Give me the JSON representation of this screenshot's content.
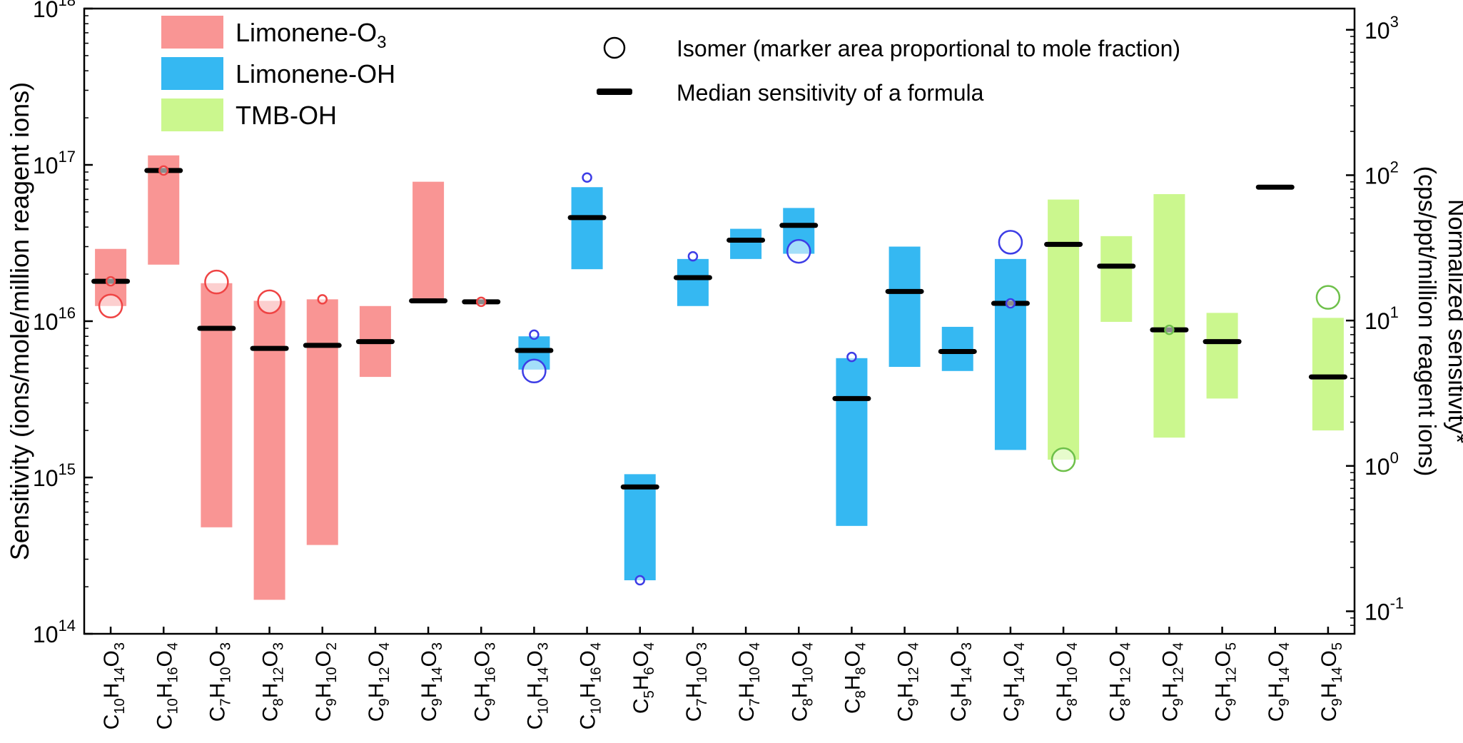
{
  "chart_data": {
    "type": "bar",
    "y_scale": "log",
    "ylim": [
      100000000000000.0,
      1e+18
    ],
    "y2lim": [
      0.07,
      1400
    ],
    "ylabel": "Sensitivity (ions/mole/million reagent ions)",
    "y2label_line1": "Normalized sensitivity*",
    "y2label_line2": "(cps/ppt/million reagent ions)",
    "y_ticks": [
      {
        "value": 100000000000000.0,
        "base": "10",
        "exp": "14"
      },
      {
        "value": 1000000000000000.0,
        "base": "10",
        "exp": "15"
      },
      {
        "value": 1e+16,
        "base": "10",
        "exp": "16"
      },
      {
        "value": 1e+17,
        "base": "10",
        "exp": "17"
      },
      {
        "value": 1e+18,
        "base": "10",
        "exp": "18"
      }
    ],
    "y2_ticks": [
      {
        "value": 0.1,
        "base": "10",
        "exp": "-1"
      },
      {
        "value": 1,
        "base": "10",
        "exp": "0"
      },
      {
        "value": 10,
        "base": "10",
        "exp": "1"
      },
      {
        "value": 100,
        "base": "10",
        "exp": "2"
      },
      {
        "value": 1000,
        "base": "10",
        "exp": "3"
      }
    ],
    "legend": {
      "placement": "top-left",
      "systems": [
        {
          "key": "O3",
          "label": "Limonene-O",
          "sub": "3",
          "color": "#f99594"
        },
        {
          "key": "OH",
          "label": "Limonene-OH",
          "sub": "",
          "color": "#35b8f2"
        },
        {
          "key": "TMB",
          "label": "TMB-OH",
          "sub": "",
          "color": "#cbf78e"
        }
      ],
      "isomer_label": "Isomer (marker area proportional to mole fraction)",
      "median_label": "Median sensitivity of a formula"
    },
    "colors": {
      "O3": {
        "bar": "#f99594",
        "marker": "#ef4444"
      },
      "OH": {
        "bar": "#35b8f2",
        "marker": "#3d3de6"
      },
      "TMB": {
        "bar": "#cbf78e",
        "marker": "#6ec04a"
      }
    },
    "categories": [
      {
        "system": "O3",
        "formula": [
          [
            "C",
            "10"
          ],
          [
            "H",
            "14"
          ],
          [
            "O",
            "3"
          ]
        ],
        "min": 1.25e+16,
        "max": 2.9e+16,
        "median": 1.8e+16,
        "isomers": [
          {
            "y": 1.8e+16,
            "r": 6
          },
          {
            "y": 1.25e+16,
            "r": 16
          }
        ]
      },
      {
        "system": "O3",
        "formula": [
          [
            "C",
            "10"
          ],
          [
            "H",
            "16"
          ],
          [
            "O",
            "4"
          ]
        ],
        "min": 2.3e+16,
        "max": 1.15e+17,
        "median": 9.2e+16,
        "isomers": [
          {
            "y": 9.2e+16,
            "r": 6
          }
        ]
      },
      {
        "system": "O3",
        "formula": [
          [
            "C",
            "7"
          ],
          [
            "H",
            "10"
          ],
          [
            "O",
            "3"
          ]
        ],
        "min": 480000000000000.0,
        "max": 1.75e+16,
        "median": 9000000000000000.0,
        "isomers": [
          {
            "y": 1.78e+16,
            "r": 16
          }
        ]
      },
      {
        "system": "O3",
        "formula": [
          [
            "C",
            "8"
          ],
          [
            "H",
            "12"
          ],
          [
            "O",
            "3"
          ]
        ],
        "min": 165000000000000.0,
        "max": 1.35e+16,
        "median": 6700000000000000.0,
        "isomers": [
          {
            "y": 1.33e+16,
            "r": 16
          }
        ]
      },
      {
        "system": "O3",
        "formula": [
          [
            "C",
            "9"
          ],
          [
            "H",
            "10"
          ],
          [
            "O",
            "2"
          ]
        ],
        "min": 370000000000000.0,
        "max": 1.38e+16,
        "median": 7000000000000000.0,
        "isomers": [
          {
            "y": 1.38e+16,
            "r": 6
          }
        ]
      },
      {
        "system": "O3",
        "formula": [
          [
            "C",
            "9"
          ],
          [
            "H",
            "12"
          ],
          [
            "O",
            "4"
          ]
        ],
        "min": 4400000000000000.0,
        "max": 1.25e+16,
        "median": 7400000000000000.0,
        "isomers": []
      },
      {
        "system": "O3",
        "formula": [
          [
            "C",
            "9"
          ],
          [
            "H",
            "14"
          ],
          [
            "O",
            "3"
          ]
        ],
        "min": 1.35e+16,
        "max": 7.8e+16,
        "median": 1.35e+16,
        "isomers": []
      },
      {
        "system": "O3",
        "formula": [
          [
            "C",
            "9"
          ],
          [
            "H",
            "16"
          ],
          [
            "O",
            "3"
          ]
        ],
        "min": 1.33e+16,
        "max": 1.33e+16,
        "median": 1.33e+16,
        "isomers": [
          {
            "y": 1.33e+16,
            "r": 6
          }
        ]
      },
      {
        "system": "OH",
        "formula": [
          [
            "C",
            "10"
          ],
          [
            "H",
            "14"
          ],
          [
            "O",
            "3"
          ]
        ],
        "min": 4900000000000000.0,
        "max": 8000000000000000.0,
        "median": 6500000000000000.0,
        "isomers": [
          {
            "y": 8200000000000000.0,
            "r": 6
          },
          {
            "y": 4800000000000000.0,
            "r": 16
          }
        ]
      },
      {
        "system": "OH",
        "formula": [
          [
            "C",
            "10"
          ],
          [
            "H",
            "16"
          ],
          [
            "O",
            "4"
          ]
        ],
        "min": 2.15e+16,
        "max": 7.2e+16,
        "median": 4.6e+16,
        "isomers": [
          {
            "y": 8.3e+16,
            "r": 6
          }
        ]
      },
      {
        "system": "OH",
        "formula": [
          [
            "C",
            "5"
          ],
          [
            "H",
            "6"
          ],
          [
            "O",
            "4"
          ]
        ],
        "min": 220000000000000.0,
        "max": 1050000000000000.0,
        "median": 870000000000000.0,
        "isomers": [
          {
            "y": 220000000000000.0,
            "r": 6
          }
        ]
      },
      {
        "system": "OH",
        "formula": [
          [
            "C",
            "7"
          ],
          [
            "H",
            "10"
          ],
          [
            "O",
            "3"
          ]
        ],
        "min": 1.25e+16,
        "max": 2.5e+16,
        "median": 1.9e+16,
        "isomers": [
          {
            "y": 2.6e+16,
            "r": 6
          }
        ]
      },
      {
        "system": "OH",
        "formula": [
          [
            "C",
            "7"
          ],
          [
            "H",
            "10"
          ],
          [
            "O",
            "4"
          ]
        ],
        "min": 2.5e+16,
        "max": 3.9e+16,
        "median": 3.3e+16,
        "isomers": []
      },
      {
        "system": "OH",
        "formula": [
          [
            "C",
            "8"
          ],
          [
            "H",
            "10"
          ],
          [
            "O",
            "4"
          ]
        ],
        "min": 2.7e+16,
        "max": 5.3e+16,
        "median": 4.1e+16,
        "isomers": [
          {
            "y": 2.8e+16,
            "r": 16
          }
        ]
      },
      {
        "system": "OH",
        "formula": [
          [
            "C",
            "8"
          ],
          [
            "H",
            "8"
          ],
          [
            "O",
            "4"
          ]
        ],
        "min": 490000000000000.0,
        "max": 5800000000000000.0,
        "median": 3200000000000000.0,
        "isomers": [
          {
            "y": 5900000000000000.0,
            "r": 6
          }
        ]
      },
      {
        "system": "OH",
        "formula": [
          [
            "C",
            "9"
          ],
          [
            "H",
            "12"
          ],
          [
            "O",
            "4"
          ]
        ],
        "min": 5100000000000000.0,
        "max": 3e+16,
        "median": 1.55e+16,
        "isomers": []
      },
      {
        "system": "OH",
        "formula": [
          [
            "C",
            "9"
          ],
          [
            "H",
            "14"
          ],
          [
            "O",
            "3"
          ]
        ],
        "min": 4800000000000000.0,
        "max": 9200000000000000.0,
        "median": 6400000000000000.0,
        "isomers": []
      },
      {
        "system": "OH",
        "formula": [
          [
            "C",
            "9"
          ],
          [
            "H",
            "14"
          ],
          [
            "O",
            "4"
          ]
        ],
        "min": 1500000000000000.0,
        "max": 2.5e+16,
        "median": 1.3e+16,
        "isomers": [
          {
            "y": 3.2e+16,
            "r": 16
          },
          {
            "y": 1.3e+16,
            "r": 6
          }
        ]
      },
      {
        "system": "TMB",
        "formula": [
          [
            "C",
            "8"
          ],
          [
            "H",
            "10"
          ],
          [
            "O",
            "4"
          ]
        ],
        "min": 1300000000000000.0,
        "max": 6e+16,
        "median": 3.1e+16,
        "isomers": [
          {
            "y": 1300000000000000.0,
            "r": 16
          }
        ]
      },
      {
        "system": "TMB",
        "formula": [
          [
            "C",
            "8"
          ],
          [
            "H",
            "12"
          ],
          [
            "O",
            "4"
          ]
        ],
        "min": 9900000000000000.0,
        "max": 3.5e+16,
        "median": 2.25e+16,
        "isomers": []
      },
      {
        "system": "TMB",
        "formula": [
          [
            "C",
            "9"
          ],
          [
            "H",
            "12"
          ],
          [
            "O",
            "4"
          ]
        ],
        "min": 1800000000000000.0,
        "max": 6.5e+16,
        "median": 8800000000000000.0,
        "isomers": [
          {
            "y": 8800000000000000.0,
            "r": 6
          }
        ]
      },
      {
        "system": "TMB",
        "formula": [
          [
            "C",
            "9"
          ],
          [
            "H",
            "12"
          ],
          [
            "O",
            "5"
          ]
        ],
        "min": 3200000000000000.0,
        "max": 1.13e+16,
        "median": 7400000000000000.0,
        "isomers": []
      },
      {
        "system": "TMB",
        "formula": [
          [
            "C",
            "9"
          ],
          [
            "H",
            "14"
          ],
          [
            "O",
            "4"
          ]
        ],
        "min": 7.2e+16,
        "max": 7.2e+16,
        "median": 7.2e+16,
        "isomers": []
      },
      {
        "system": "TMB",
        "formula": [
          [
            "C",
            "9"
          ],
          [
            "H",
            "14"
          ],
          [
            "O",
            "5"
          ]
        ],
        "min": 2000000000000000.0,
        "max": 1.05e+16,
        "median": 4400000000000000.0,
        "isomers": [
          {
            "y": 1.42e+16,
            "r": 16
          }
        ]
      }
    ]
  }
}
